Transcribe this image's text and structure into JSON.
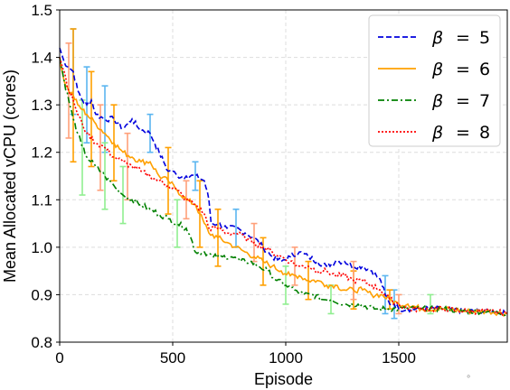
{
  "chart_data": {
    "type": "line",
    "xlabel": "Episode",
    "ylabel": "Mean Allocated vCPU (cores)",
    "xlim": [
      0,
      1980
    ],
    "ylim": [
      0.8,
      1.5
    ],
    "xticks": [
      0,
      500,
      1000,
      1500
    ],
    "yticks": [
      0.8,
      0.9,
      1.0,
      1.1,
      1.2,
      1.3,
      1.4,
      1.5
    ],
    "xtick_labels": [
      "0",
      "500",
      "1000",
      "1500"
    ],
    "ytick_labels": [
      "0.8",
      "0.9",
      "1.0",
      "1.1",
      "1.2",
      "1.3",
      "1.4",
      "1.5"
    ],
    "grid": true,
    "legend_position": "top-right",
    "annotation": "∘",
    "series": [
      {
        "name": "β = 5",
        "legend_label": {
          "sym": "β",
          "eq": "=",
          "num": "5"
        },
        "color": "#0000dd",
        "errcolor": "#5bb6f0",
        "style": "dashed",
        "points": [
          [
            0,
            1.42
          ],
          [
            20,
            1.39
          ],
          [
            40,
            1.38
          ],
          [
            60,
            1.37
          ],
          [
            80,
            1.33
          ],
          [
            100,
            1.31
          ],
          [
            120,
            1.3
          ],
          [
            140,
            1.31
          ],
          [
            160,
            1.28
          ],
          [
            200,
            1.27
          ],
          [
            240,
            1.27
          ],
          [
            280,
            1.25
          ],
          [
            300,
            1.26
          ],
          [
            320,
            1.27
          ],
          [
            350,
            1.25
          ],
          [
            400,
            1.24
          ],
          [
            420,
            1.22
          ],
          [
            440,
            1.2
          ],
          [
            460,
            1.18
          ],
          [
            480,
            1.16
          ],
          [
            500,
            1.16
          ],
          [
            520,
            1.15
          ],
          [
            560,
            1.15
          ],
          [
            600,
            1.15
          ],
          [
            640,
            1.14
          ],
          [
            660,
            1.1
          ],
          [
            670,
            1.05
          ],
          [
            700,
            1.05
          ],
          [
            740,
            1.04
          ],
          [
            780,
            1.04
          ],
          [
            820,
            1.03
          ],
          [
            860,
            1.02
          ],
          [
            900,
            1.0
          ],
          [
            940,
            0.98
          ],
          [
            980,
            0.97
          ],
          [
            1020,
            0.98
          ],
          [
            1060,
            0.99
          ],
          [
            1100,
            0.98
          ],
          [
            1140,
            0.97
          ],
          [
            1180,
            0.96
          ],
          [
            1220,
            0.97
          ],
          [
            1260,
            0.97
          ],
          [
            1300,
            0.96
          ],
          [
            1340,
            0.96
          ],
          [
            1380,
            0.95
          ],
          [
            1420,
            0.93
          ],
          [
            1440,
            0.9
          ],
          [
            1460,
            0.88
          ],
          [
            1480,
            0.88
          ],
          [
            1500,
            0.87
          ],
          [
            1540,
            0.87
          ],
          [
            1600,
            0.87
          ],
          [
            1700,
            0.87
          ],
          [
            1800,
            0.865
          ],
          [
            1900,
            0.865
          ],
          [
            1980,
            0.86
          ]
        ],
        "errors": [
          [
            60,
            1.37,
            0.09
          ],
          [
            120,
            1.3,
            0.08
          ],
          [
            200,
            1.27,
            0.07
          ],
          [
            400,
            1.24,
            0.04
          ],
          [
            600,
            1.15,
            0.03
          ],
          [
            780,
            1.04,
            0.04
          ],
          [
            1440,
            0.9,
            0.04
          ],
          [
            1480,
            0.88,
            0.03
          ]
        ]
      },
      {
        "name": "β = 6",
        "legend_label": {
          "sym": "β",
          "eq": "=",
          "num": "6"
        },
        "color": "#ffa000",
        "errcolor": "#ffa000",
        "style": "solid",
        "points": [
          [
            0,
            1.4
          ],
          [
            20,
            1.35
          ],
          [
            40,
            1.33
          ],
          [
            60,
            1.32
          ],
          [
            80,
            1.3
          ],
          [
            100,
            1.29
          ],
          [
            120,
            1.28
          ],
          [
            160,
            1.26
          ],
          [
            200,
            1.24
          ],
          [
            240,
            1.22
          ],
          [
            280,
            1.2
          ],
          [
            320,
            1.19
          ],
          [
            360,
            1.18
          ],
          [
            400,
            1.18
          ],
          [
            440,
            1.15
          ],
          [
            480,
            1.14
          ],
          [
            520,
            1.12
          ],
          [
            560,
            1.1
          ],
          [
            600,
            1.09
          ],
          [
            620,
            1.07
          ],
          [
            640,
            1.05
          ],
          [
            660,
            1.03
          ],
          [
            700,
            1.02
          ],
          [
            740,
            1.01
          ],
          [
            780,
            1.0
          ],
          [
            820,
            0.99
          ],
          [
            860,
            0.98
          ],
          [
            900,
            0.97
          ],
          [
            940,
            0.96
          ],
          [
            980,
            0.95
          ],
          [
            1020,
            0.94
          ],
          [
            1060,
            0.94
          ],
          [
            1100,
            0.93
          ],
          [
            1140,
            0.93
          ],
          [
            1180,
            0.92
          ],
          [
            1220,
            0.92
          ],
          [
            1260,
            0.91
          ],
          [
            1300,
            0.91
          ],
          [
            1340,
            0.91
          ],
          [
            1380,
            0.9
          ],
          [
            1420,
            0.9
          ],
          [
            1460,
            0.89
          ],
          [
            1500,
            0.88
          ],
          [
            1540,
            0.88
          ],
          [
            1600,
            0.87
          ],
          [
            1700,
            0.87
          ],
          [
            1800,
            0.865
          ],
          [
            1900,
            0.865
          ],
          [
            1980,
            0.86
          ]
        ],
        "errors": [
          [
            60,
            1.32,
            0.14
          ],
          [
            140,
            1.27,
            0.1
          ],
          [
            240,
            1.22,
            0.08
          ],
          [
            480,
            1.14,
            0.07
          ],
          [
            620,
            1.07,
            0.07
          ],
          [
            700,
            1.02,
            0.06
          ],
          [
            900,
            0.97,
            0.05
          ],
          [
            1100,
            0.93,
            0.04
          ],
          [
            1300,
            0.91,
            0.04
          ],
          [
            1460,
            0.89,
            0.02
          ]
        ]
      },
      {
        "name": "β = 7",
        "legend_label": {
          "sym": "β",
          "eq": "=",
          "num": "7"
        },
        "color": "#008000",
        "errcolor": "#90ee90",
        "style": "dashdot",
        "points": [
          [
            0,
            1.4
          ],
          [
            20,
            1.35
          ],
          [
            40,
            1.31
          ],
          [
            60,
            1.27
          ],
          [
            80,
            1.24
          ],
          [
            100,
            1.21
          ],
          [
            120,
            1.19
          ],
          [
            160,
            1.17
          ],
          [
            200,
            1.15
          ],
          [
            240,
            1.13
          ],
          [
            280,
            1.11
          ],
          [
            320,
            1.1
          ],
          [
            360,
            1.09
          ],
          [
            400,
            1.08
          ],
          [
            440,
            1.07
          ],
          [
            480,
            1.06
          ],
          [
            520,
            1.05
          ],
          [
            560,
            1.04
          ],
          [
            580,
            1.02
          ],
          [
            600,
            0.99
          ],
          [
            640,
            0.99
          ],
          [
            680,
            0.98
          ],
          [
            720,
            0.98
          ],
          [
            760,
            0.98
          ],
          [
            800,
            0.97
          ],
          [
            840,
            0.97
          ],
          [
            880,
            0.96
          ],
          [
            920,
            0.95
          ],
          [
            960,
            0.93
          ],
          [
            1000,
            0.92
          ],
          [
            1040,
            0.91
          ],
          [
            1080,
            0.9
          ],
          [
            1120,
            0.9
          ],
          [
            1160,
            0.89
          ],
          [
            1200,
            0.89
          ],
          [
            1260,
            0.88
          ],
          [
            1320,
            0.88
          ],
          [
            1400,
            0.87
          ],
          [
            1500,
            0.87
          ],
          [
            1600,
            0.87
          ],
          [
            1700,
            0.87
          ],
          [
            1800,
            0.865
          ],
          [
            1900,
            0.865
          ],
          [
            1980,
            0.86
          ]
        ],
        "errors": [
          [
            100,
            1.21,
            0.1
          ],
          [
            200,
            1.15,
            0.07
          ],
          [
            280,
            1.11,
            0.06
          ],
          [
            520,
            1.05,
            0.05
          ],
          [
            1000,
            0.92,
            0.04
          ],
          [
            1200,
            0.89,
            0.03
          ],
          [
            1640,
            0.88,
            0.02
          ]
        ]
      },
      {
        "name": "β = 8",
        "legend_label": {
          "sym": "β",
          "eq": "=",
          "num": "8"
        },
        "color": "#ff0000",
        "errcolor": "#ffa07a",
        "style": "dotted",
        "points": [
          [
            0,
            1.4
          ],
          [
            20,
            1.37
          ],
          [
            40,
            1.33
          ],
          [
            60,
            1.31
          ],
          [
            80,
            1.28
          ],
          [
            100,
            1.26
          ],
          [
            120,
            1.24
          ],
          [
            160,
            1.22
          ],
          [
            200,
            1.21
          ],
          [
            240,
            1.19
          ],
          [
            280,
            1.18
          ],
          [
            320,
            1.17
          ],
          [
            360,
            1.16
          ],
          [
            400,
            1.15
          ],
          [
            440,
            1.14
          ],
          [
            480,
            1.13
          ],
          [
            520,
            1.12
          ],
          [
            560,
            1.1
          ],
          [
            600,
            1.09
          ],
          [
            640,
            1.07
          ],
          [
            660,
            1.04
          ],
          [
            700,
            1.04
          ],
          [
            740,
            1.03
          ],
          [
            780,
            1.03
          ],
          [
            820,
            1.02
          ],
          [
            860,
            1.01
          ],
          [
            900,
            1.0
          ],
          [
            940,
            0.99
          ],
          [
            980,
            0.98
          ],
          [
            1020,
            0.97
          ],
          [
            1060,
            0.96
          ],
          [
            1100,
            0.96
          ],
          [
            1140,
            0.95
          ],
          [
            1180,
            0.95
          ],
          [
            1220,
            0.94
          ],
          [
            1260,
            0.94
          ],
          [
            1300,
            0.93
          ],
          [
            1340,
            0.93
          ],
          [
            1380,
            0.92
          ],
          [
            1420,
            0.91
          ],
          [
            1460,
            0.89
          ],
          [
            1500,
            0.88
          ],
          [
            1540,
            0.87
          ],
          [
            1600,
            0.87
          ],
          [
            1700,
            0.87
          ],
          [
            1800,
            0.865
          ],
          [
            1900,
            0.865
          ],
          [
            1980,
            0.86
          ]
        ],
        "errors": [
          [
            40,
            1.33,
            0.1
          ],
          [
            180,
            1.21,
            0.09
          ],
          [
            300,
            1.17,
            0.07
          ],
          [
            560,
            1.1,
            0.04
          ],
          [
            860,
            1.01,
            0.04
          ],
          [
            1040,
            0.96,
            0.04
          ],
          [
            1300,
            0.93,
            0.04
          ],
          [
            1500,
            0.88,
            0.02
          ]
        ]
      }
    ]
  }
}
